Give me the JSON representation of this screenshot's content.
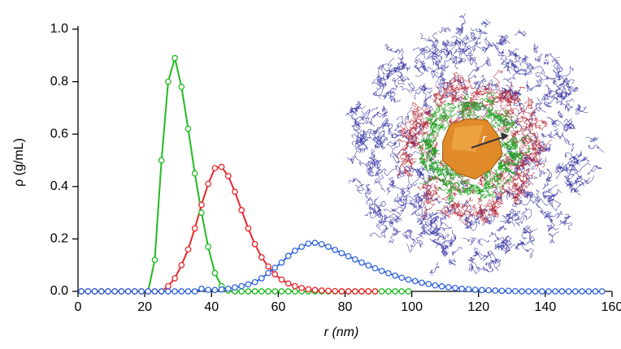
{
  "chart_data": {
    "type": "line",
    "x_label": "r (nm)",
    "y_label": "ρ (g/mL)",
    "inset_label": "r",
    "xlim": [
      0,
      160
    ],
    "xticks": [
      0,
      20,
      40,
      60,
      80,
      100,
      120,
      140,
      160
    ],
    "ylim": [
      0,
      1.0
    ],
    "yticks": [
      {
        "value": 0,
        "label": "0.0"
      },
      {
        "value": 0.2,
        "label": "0.2"
      },
      {
        "value": 0.4,
        "label": "0.4"
      },
      {
        "value": 0.6,
        "label": "0.6"
      },
      {
        "value": 0.8,
        "label": "0.8"
      },
      {
        "value": 1.0,
        "label": "1.0"
      }
    ],
    "x": [
      1,
      3,
      5,
      7,
      9,
      11,
      13,
      15,
      17,
      19,
      21,
      23,
      25,
      27,
      29,
      31,
      33,
      35,
      37,
      39,
      41,
      43,
      45,
      47,
      49,
      51,
      53,
      55,
      57,
      59,
      61,
      63,
      65,
      67,
      69,
      71,
      73,
      75,
      77,
      79,
      81,
      83,
      85,
      87,
      89,
      91,
      93,
      95,
      97,
      99,
      101,
      103,
      105,
      107,
      109,
      111,
      113,
      115,
      117,
      119,
      121,
      123,
      125,
      127,
      129,
      131,
      133,
      135,
      137,
      139,
      141,
      143,
      145,
      147,
      149,
      151,
      153,
      155,
      157
    ],
    "series": [
      {
        "color": "#22bb22",
        "values": [
          0,
          0,
          0,
          0,
          0,
          0,
          0,
          0,
          0,
          0,
          0,
          0.12,
          0.5,
          0.8,
          0.89,
          0.78,
          0.62,
          0.45,
          0.3,
          0.17,
          0.07,
          0.02,
          0.003,
          0,
          0,
          0,
          0,
          0,
          0,
          0,
          0,
          0,
          0,
          0,
          0,
          0,
          0,
          0,
          0,
          0,
          0,
          0,
          0,
          0,
          0,
          0,
          0,
          0,
          0,
          0,
          null,
          null,
          null,
          null,
          null,
          null,
          null,
          null,
          null,
          null,
          null,
          null,
          null,
          null,
          null,
          null,
          null,
          null,
          null,
          null,
          null,
          null,
          null,
          null,
          null,
          null,
          null,
          null,
          null
        ]
      },
      {
        "color": "#e8262a",
        "values": [
          0,
          0,
          0,
          0,
          0,
          0,
          0,
          0,
          0,
          0,
          0,
          0,
          0,
          0.02,
          0.05,
          0.1,
          0.16,
          0.24,
          0.33,
          0.41,
          0.47,
          0.475,
          0.44,
          0.38,
          0.31,
          0.24,
          0.18,
          0.13,
          0.095,
          0.065,
          0.045,
          0.03,
          0.02,
          0.013,
          0.008,
          0.005,
          0.003,
          0.002,
          0.001,
          0,
          0,
          0,
          0,
          0,
          0,
          null,
          null,
          null,
          null,
          null,
          null,
          null,
          null,
          null,
          null,
          null,
          null,
          null,
          null,
          null,
          null,
          null,
          null,
          null,
          null,
          null,
          null,
          null,
          null,
          null,
          null,
          null,
          null,
          null,
          null,
          null,
          null,
          null,
          null
        ]
      },
      {
        "color": "#3366dd",
        "values": [
          0,
          0,
          0,
          0,
          0,
          0,
          0,
          0,
          0,
          0,
          0,
          0,
          0,
          0,
          0,
          0,
          0,
          0,
          0.01,
          0.006,
          0.005,
          0.007,
          0.01,
          0.015,
          0.02,
          0.027,
          0.035,
          0.05,
          0.07,
          0.09,
          0.11,
          0.135,
          0.155,
          0.17,
          0.182,
          0.185,
          0.18,
          0.17,
          0.158,
          0.146,
          0.134,
          0.122,
          0.11,
          0.099,
          0.088,
          0.078,
          0.069,
          0.06,
          0.052,
          0.045,
          0.039,
          0.033,
          0.028,
          0.023,
          0.019,
          0.016,
          0.013,
          0.01,
          0.008,
          0.006,
          0.005,
          0.004,
          0.003,
          0.002,
          0.002,
          0.001,
          0,
          0,
          0,
          0,
          0,
          0,
          0,
          0,
          0,
          0,
          0,
          0,
          0
        ]
      }
    ]
  }
}
